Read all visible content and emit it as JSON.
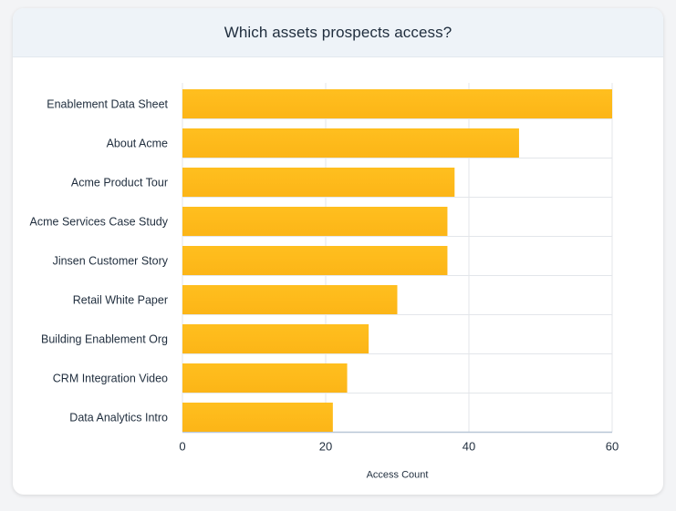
{
  "header": {
    "title": "Which assets prospects access?"
  },
  "chart_data": {
    "type": "bar",
    "orientation": "horizontal",
    "title": "Which assets prospects access?",
    "xlabel": "Access Count",
    "ylabel": "",
    "categories": [
      "Enablement Data Sheet",
      "About Acme",
      "Acme Product Tour",
      "Acme Services Case Study",
      "Jinsen Customer Story",
      "Retail White Paper",
      "Building Enablement Org",
      "CRM Integration Video",
      "Data Analytics Intro"
    ],
    "values": [
      60,
      47,
      38,
      37,
      37,
      30,
      26,
      23,
      21
    ],
    "xlim": [
      0,
      60
    ],
    "xticks": [
      0,
      20,
      40,
      60
    ],
    "grid": "vertical",
    "legend": "none"
  },
  "colors": {
    "bar_top": "#ffbf1f",
    "bar_bottom": "#fcb517",
    "grid": "#e3e6ea",
    "axis": "#b8c6d6",
    "text": "#1f2d3d"
  }
}
